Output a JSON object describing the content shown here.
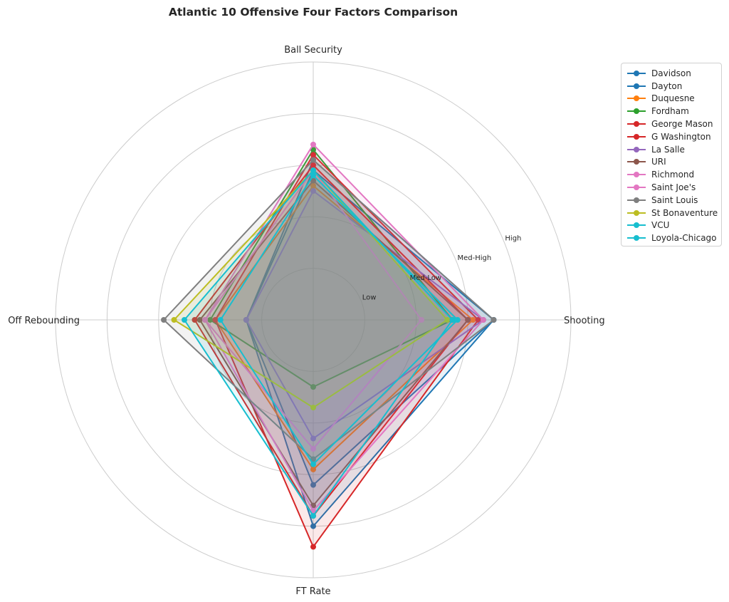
{
  "chart_data": {
    "type": "radar",
    "title": "Atlantic 10 Offensive Four Factors Comparison",
    "axes": [
      "Shooting",
      "Ball Security",
      "Off Rebounding",
      "FT Rate"
    ],
    "rlim": [
      0,
      5
    ],
    "ring_labels": [
      {
        "r": 1,
        "label": "Low"
      },
      {
        "r": 2,
        "label": "Med-Low"
      },
      {
        "r": 3,
        "label": "Med-High"
      },
      {
        "r": 4,
        "label": "High"
      }
    ],
    "grid": true,
    "legend_position": "right",
    "series": [
      {
        "name": "Davidson",
        "color": "#1f77b4",
        "values": [
          3.5,
          2.9,
          1.3,
          4.0
        ]
      },
      {
        "name": "Dayton",
        "color": "#1f77b4",
        "values": [
          3.5,
          3.1,
          1.3,
          3.2
        ]
      },
      {
        "name": "Duquesne",
        "color": "#ff7f0e",
        "values": [
          3.1,
          2.6,
          1.9,
          2.9
        ]
      },
      {
        "name": "Fordham",
        "color": "#2ca02c",
        "values": [
          2.7,
          3.3,
          2.0,
          1.3
        ]
      },
      {
        "name": "George Mason",
        "color": "#d62728",
        "values": [
          3.2,
          3.2,
          1.9,
          4.4
        ]
      },
      {
        "name": "G Washington",
        "color": "#d62728",
        "values": [
          3.0,
          3.0,
          2.3,
          3.8
        ]
      },
      {
        "name": "La Salle",
        "color": "#9467bd",
        "values": [
          3.3,
          2.5,
          1.3,
          2.3
        ]
      },
      {
        "name": "URI",
        "color": "#8c564b",
        "values": [
          3.0,
          2.7,
          2.2,
          3.6
        ]
      },
      {
        "name": "Richmond",
        "color": "#e377c2",
        "values": [
          2.1,
          2.9,
          2.1,
          2.5
        ]
      },
      {
        "name": "Saint Joe's",
        "color": "#e377c2",
        "values": [
          3.3,
          3.4,
          2.1,
          3.7
        ]
      },
      {
        "name": "Saint Louis",
        "color": "#7f7f7f",
        "values": [
          3.5,
          3.1,
          2.9,
          2.7
        ]
      },
      {
        "name": "St Bonaventure",
        "color": "#bcbd22",
        "values": [
          2.6,
          2.9,
          2.7,
          1.7
        ]
      },
      {
        "name": "VCU",
        "color": "#17becf",
        "values": [
          2.7,
          2.9,
          2.5,
          3.8
        ]
      },
      {
        "name": "Loyola-Chicago",
        "color": "#17becf",
        "values": [
          2.8,
          2.8,
          1.8,
          2.8
        ]
      }
    ]
  }
}
